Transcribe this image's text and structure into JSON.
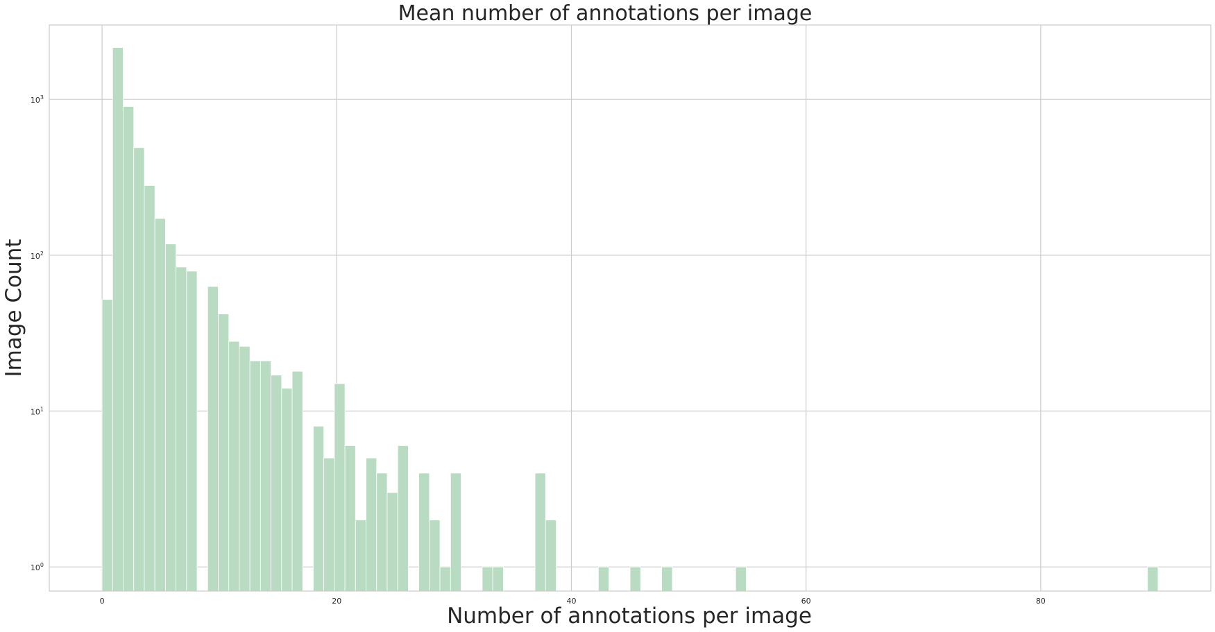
{
  "chart_data": {
    "type": "bar",
    "title": "Mean number of annotations per image",
    "xlabel": "Number of annotations per image",
    "ylabel": "Image Count",
    "yscale": "log",
    "grid": true,
    "xlim": [
      -4.5,
      94.5
    ],
    "ylim": [
      0.7,
      3000
    ],
    "x_ticks": [
      0,
      20,
      40,
      60,
      80
    ],
    "y_ticks": [
      {
        "value": 1,
        "base": "10",
        "exp": "0"
      },
      {
        "value": 10,
        "base": "10",
        "exp": "1"
      },
      {
        "value": 100,
        "base": "10",
        "exp": "2"
      },
      {
        "value": 1000,
        "base": "10",
        "exp": "3"
      }
    ],
    "bar_color": "#b9dbc2",
    "bin_width": 0.9,
    "bins": [
      {
        "x": 0.0,
        "count": 52
      },
      {
        "x": 0.9,
        "count": 2150
      },
      {
        "x": 1.8,
        "count": 900
      },
      {
        "x": 2.7,
        "count": 490
      },
      {
        "x": 3.6,
        "count": 280
      },
      {
        "x": 4.5,
        "count": 172
      },
      {
        "x": 5.4,
        "count": 118
      },
      {
        "x": 6.3,
        "count": 84
      },
      {
        "x": 7.2,
        "count": 79
      },
      {
        "x": 9.0,
        "count": 63
      },
      {
        "x": 9.9,
        "count": 42
      },
      {
        "x": 10.8,
        "count": 28
      },
      {
        "x": 11.7,
        "count": 26
      },
      {
        "x": 12.6,
        "count": 21
      },
      {
        "x": 13.5,
        "count": 21
      },
      {
        "x": 14.4,
        "count": 17
      },
      {
        "x": 15.3,
        "count": 14
      },
      {
        "x": 16.2,
        "count": 18
      },
      {
        "x": 18.0,
        "count": 8
      },
      {
        "x": 18.9,
        "count": 5
      },
      {
        "x": 19.8,
        "count": 15
      },
      {
        "x": 20.7,
        "count": 6
      },
      {
        "x": 21.6,
        "count": 2
      },
      {
        "x": 22.5,
        "count": 5
      },
      {
        "x": 23.4,
        "count": 4
      },
      {
        "x": 24.3,
        "count": 3
      },
      {
        "x": 25.2,
        "count": 6
      },
      {
        "x": 27.0,
        "count": 4
      },
      {
        "x": 27.9,
        "count": 2
      },
      {
        "x": 28.8,
        "count": 1
      },
      {
        "x": 29.7,
        "count": 4
      },
      {
        "x": 32.4,
        "count": 1
      },
      {
        "x": 33.3,
        "count": 1
      },
      {
        "x": 36.9,
        "count": 4
      },
      {
        "x": 37.8,
        "count": 2
      },
      {
        "x": 42.3,
        "count": 1
      },
      {
        "x": 45.0,
        "count": 1
      },
      {
        "x": 47.7,
        "count": 1
      },
      {
        "x": 54.0,
        "count": 1
      },
      {
        "x": 89.1,
        "count": 1
      }
    ]
  }
}
